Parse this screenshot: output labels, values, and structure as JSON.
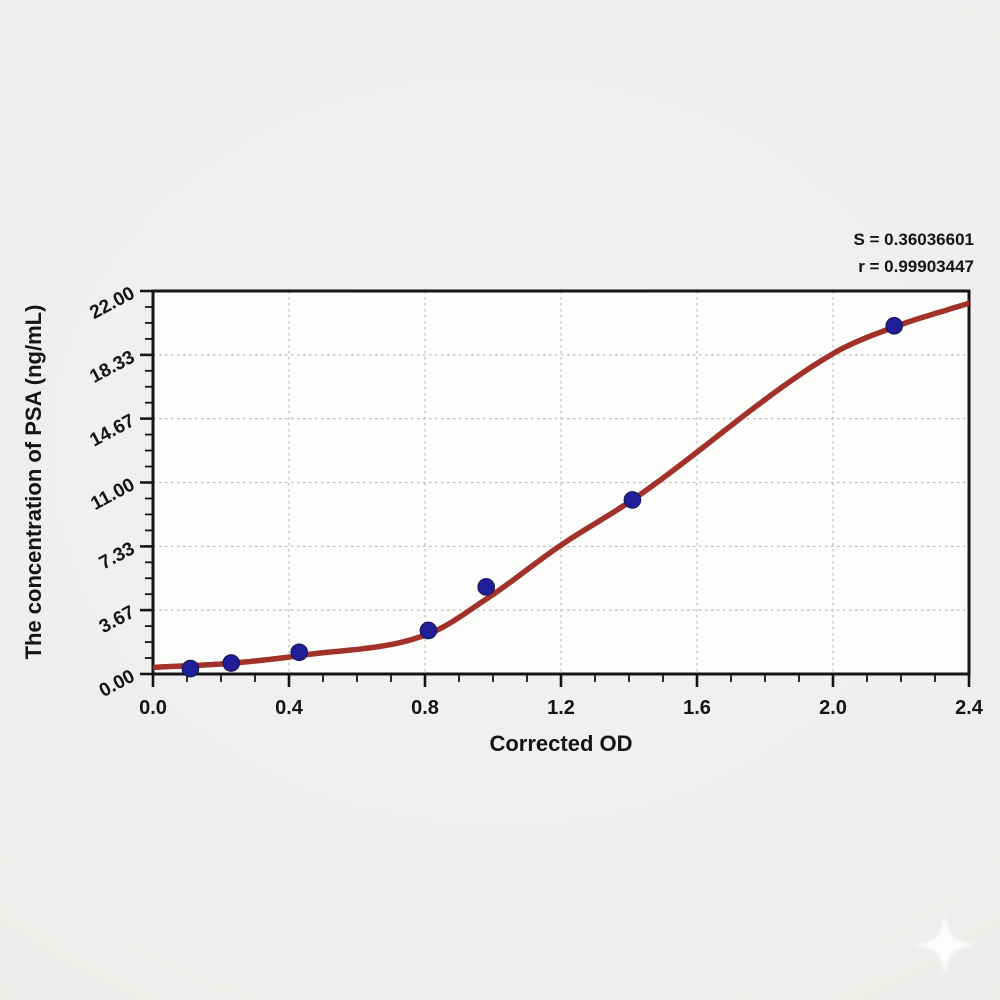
{
  "chart_data": {
    "type": "scatter",
    "title": "",
    "xlabel": "Corrected OD",
    "ylabel": "The concentration of PSA (ng/mL)",
    "xlim": [
      0.0,
      2.4
    ],
    "ylim": [
      0.0,
      22.0
    ],
    "grid": "dotted-major",
    "legend_position": "none",
    "x_ticks": {
      "major": [
        0.0,
        0.4,
        0.8,
        1.2,
        1.6,
        2.0,
        2.4
      ],
      "labels": [
        "0.0",
        "0.4",
        "0.8",
        "1.2",
        "1.6",
        "2.0",
        "2.4"
      ],
      "minor_step": 0.1
    },
    "y_ticks": {
      "major": [
        0.0,
        3.67,
        7.33,
        11.0,
        14.67,
        18.33,
        22.0
      ],
      "labels": [
        "0.00",
        "3.67",
        "7.33",
        "11.00",
        "14.67",
        "18.33",
        "22.00"
      ],
      "minors_between": 3
    },
    "series": [
      {
        "name": "standard-points",
        "type": "scatter",
        "points": [
          {
            "od": 0.11,
            "conc": 0.31
          },
          {
            "od": 0.23,
            "conc": 0.63
          },
          {
            "od": 0.43,
            "conc": 1.25
          },
          {
            "od": 0.81,
            "conc": 2.5
          },
          {
            "od": 0.98,
            "conc": 5.0
          },
          {
            "od": 1.41,
            "conc": 10.0
          },
          {
            "od": 2.18,
            "conc": 20.0
          }
        ]
      },
      {
        "name": "fitted-sigmoid-curve",
        "type": "line",
        "anchors": [
          [
            0.0,
            0.38
          ],
          [
            0.23,
            0.62
          ],
          [
            0.44,
            1.08
          ],
          [
            0.81,
            2.3
          ],
          [
            0.98,
            4.3
          ],
          [
            1.2,
            7.4
          ],
          [
            1.41,
            10.0
          ],
          [
            2.0,
            18.4
          ],
          [
            2.18,
            19.93
          ],
          [
            2.4,
            21.3
          ]
        ]
      }
    ],
    "annotations": {
      "s_label": "S = 0.36036601",
      "r_label": "r = 0.99903447"
    },
    "colors": {
      "curve": "#a23229",
      "point": "#201f99",
      "point_edge": "#12114f",
      "grid": "#bdbdbd",
      "axis": "#161616",
      "text": "#141414",
      "plot_bg": "#fdfdfb",
      "page_bg": "#efeeec"
    }
  }
}
